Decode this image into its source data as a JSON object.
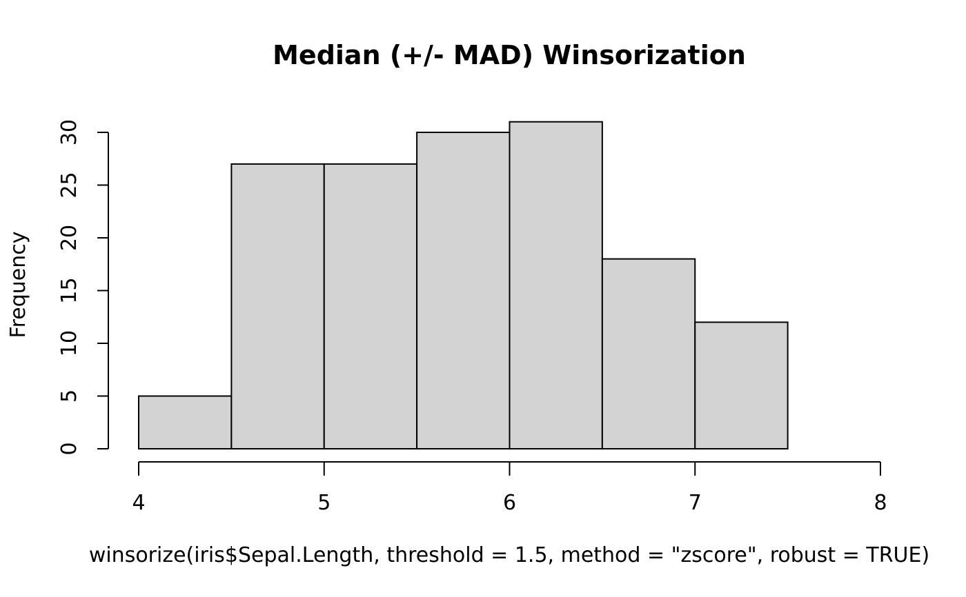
{
  "chart_data": {
    "type": "bar",
    "title": "Median (+/- MAD) Winsorization",
    "xlabel": "winsorize(iris$Sepal.Length, threshold = 1.5, method = \"zscore\", robust = TRUE)",
    "ylabel": "Frequency",
    "bins": [
      {
        "from": 4.0,
        "to": 4.5,
        "count": 5
      },
      {
        "from": 4.5,
        "to": 5.0,
        "count": 27
      },
      {
        "from": 5.0,
        "to": 5.5,
        "count": 27
      },
      {
        "from": 5.5,
        "to": 6.0,
        "count": 30
      },
      {
        "from": 6.0,
        "to": 6.5,
        "count": 31
      },
      {
        "from": 6.5,
        "to": 7.0,
        "count": 18
      },
      {
        "from": 7.0,
        "to": 7.5,
        "count": 12
      }
    ],
    "xlim": [
      4,
      8
    ],
    "ylim": [
      0,
      30
    ],
    "x_ticks": [
      "4",
      "5",
      "6",
      "7",
      "8"
    ],
    "y_ticks": [
      "0",
      "5",
      "10",
      "15",
      "20",
      "25",
      "30"
    ],
    "grid": false,
    "colors": {
      "bar_fill": "#d3d3d3",
      "bar_stroke": "#000000"
    }
  }
}
